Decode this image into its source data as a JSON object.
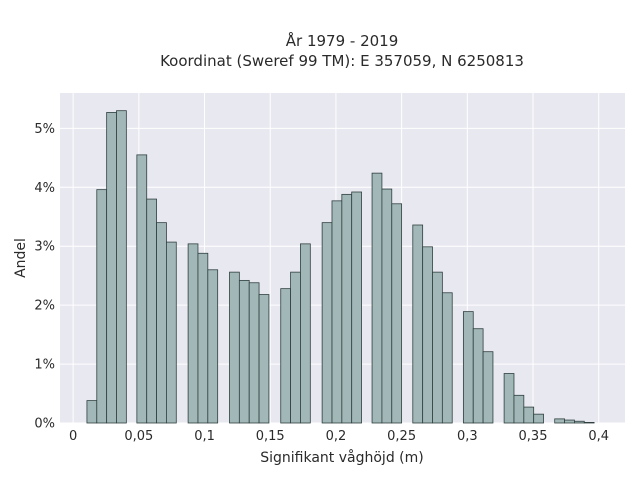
{
  "chart_data": {
    "type": "bar",
    "title_line1": "År 1979 - 2019",
    "title_line2": "Koordinat (Sweref 99 TM): E 357059, N 6250813",
    "xlabel": "Signifikant våghöjd (m)",
    "ylabel": "Andel",
    "xlim": [
      -0.01,
      0.42
    ],
    "ylim": [
      0,
      0.056
    ],
    "bin_width": 0.0075,
    "x_ticks": [
      0,
      0.05,
      0.1,
      0.15,
      0.2,
      0.25,
      0.3,
      0.35,
      0.4
    ],
    "x_tick_labels": [
      "0",
      "0,05",
      "0,1",
      "0,15",
      "0,2",
      "0,25",
      "0,3",
      "0,35",
      "0,4"
    ],
    "y_ticks": [
      0,
      0.01,
      0.02,
      0.03,
      0.04,
      0.05
    ],
    "y_tick_labels": [
      "0%",
      "1%",
      "2%",
      "3%",
      "4%",
      "5%"
    ],
    "grid": true,
    "bin_starts": [
      0.0105,
      0.018,
      0.0255,
      0.033,
      0.0485,
      0.056,
      0.0635,
      0.071,
      0.0875,
      0.095,
      0.1025,
      0.119,
      0.1265,
      0.134,
      0.1415,
      0.158,
      0.1655,
      0.173,
      0.1895,
      0.197,
      0.2045,
      0.212,
      0.2275,
      0.235,
      0.2425,
      0.2585,
      0.266,
      0.2735,
      0.281,
      0.297,
      0.3045,
      0.312,
      0.328,
      0.3355,
      0.343,
      0.3505,
      0.3665,
      0.374,
      0.3815,
      0.389
    ],
    "values": [
      0.0038,
      0.0396,
      0.0527,
      0.053,
      0.0455,
      0.038,
      0.034,
      0.0307,
      0.0304,
      0.0288,
      0.026,
      0.0256,
      0.0242,
      0.0238,
      0.0218,
      0.0228,
      0.0256,
      0.0304,
      0.034,
      0.0377,
      0.0388,
      0.0392,
      0.0424,
      0.0397,
      0.0372,
      0.0336,
      0.0299,
      0.0256,
      0.0221,
      0.0189,
      0.016,
      0.0121,
      0.0084,
      0.0047,
      0.0027,
      0.0015,
      0.0007,
      0.0005,
      0.0003,
      0.0001
    ]
  }
}
